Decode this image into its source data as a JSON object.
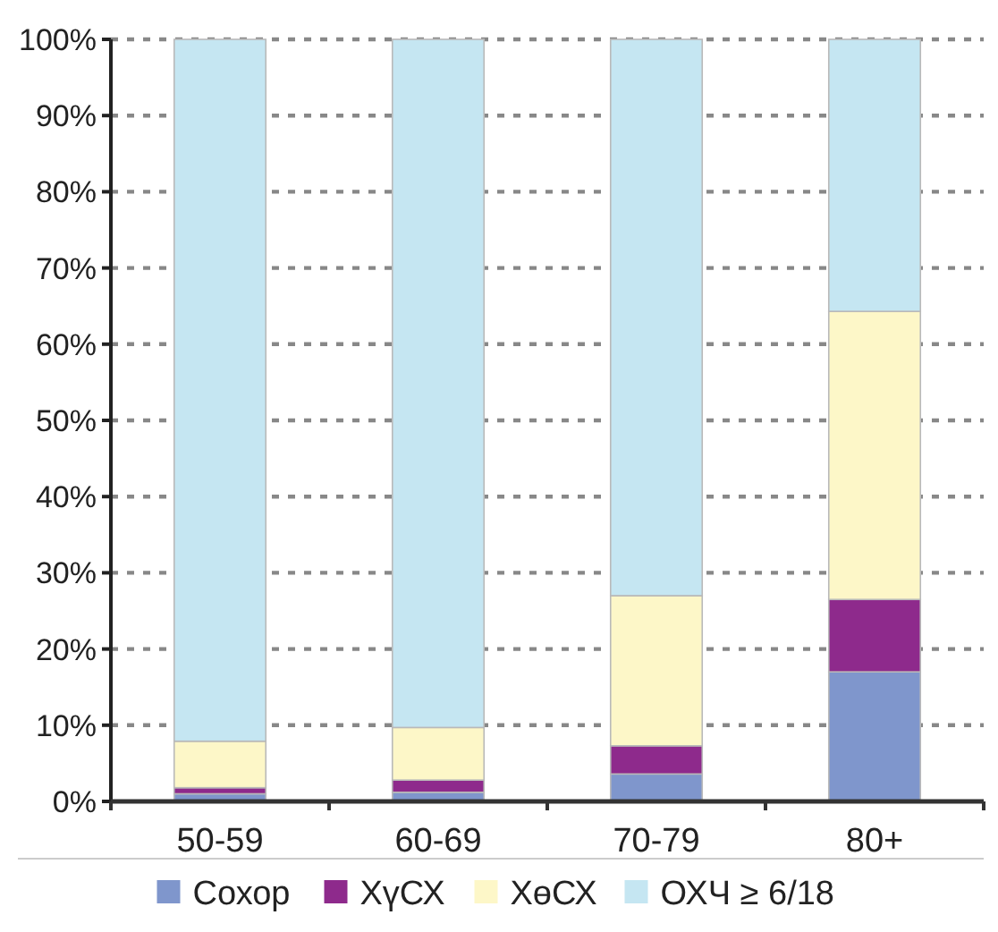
{
  "chart_data": {
    "type": "bar",
    "stacked": true,
    "categories": [
      "50-59",
      "60-69",
      "70-79",
      "80+"
    ],
    "series": [
      {
        "name": "Сохор",
        "color": "#7f96cc",
        "values": [
          1,
          1.2,
          3.6,
          17
        ]
      },
      {
        "name": "ХүСХ",
        "color": "#8e2a8c",
        "values": [
          0.8,
          1.6,
          3.7,
          9.5
        ]
      },
      {
        "name": "ХөСХ",
        "color": "#fdf7c8",
        "values": [
          6.1,
          6.9,
          19.7,
          37.8
        ]
      },
      {
        "name": "ОХЧ ≥ 6/18",
        "color": "#c5e6f2",
        "values": [
          92.1,
          90.3,
          73,
          35.7
        ]
      }
    ],
    "ylim": [
      0,
      100
    ],
    "yticks": [
      {
        "value": 0,
        "label": "0%"
      },
      {
        "value": 10,
        "label": "10%"
      },
      {
        "value": 20,
        "label": "20%"
      },
      {
        "value": 30,
        "label": "30%"
      },
      {
        "value": 40,
        "label": "40%"
      },
      {
        "value": 50,
        "label": "50%"
      },
      {
        "value": 60,
        "label": "60%"
      },
      {
        "value": 70,
        "label": "70%"
      },
      {
        "value": 80,
        "label": "80%"
      },
      {
        "value": 90,
        "label": "90%"
      },
      {
        "value": 100,
        "label": "100%"
      }
    ],
    "grid": "y",
    "legend": "bottom"
  }
}
